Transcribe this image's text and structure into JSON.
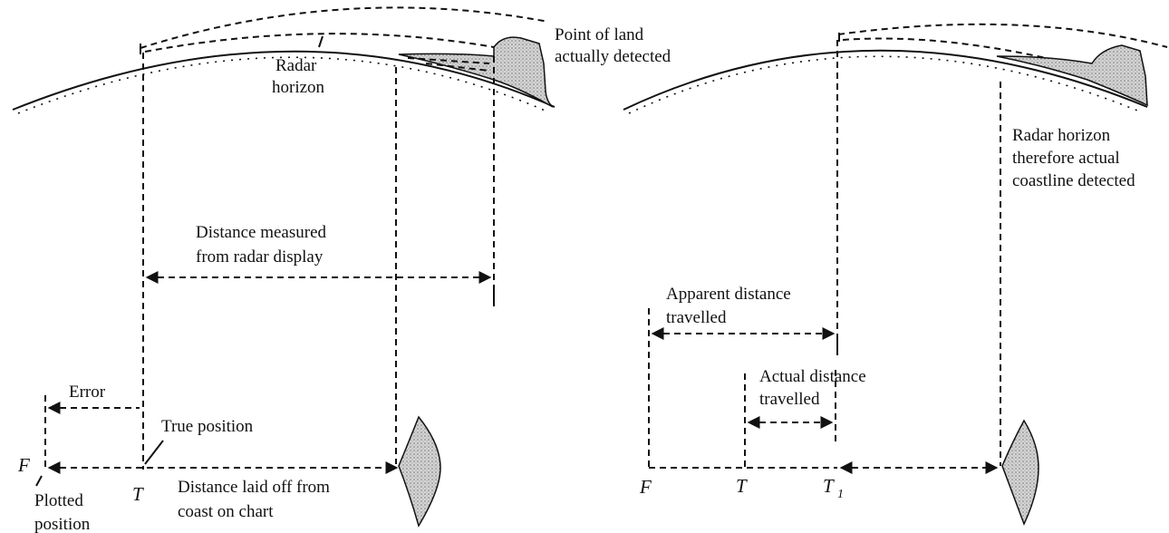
{
  "left_diagram": {
    "point_of_land": [
      "Point of land",
      "actually detected"
    ],
    "radar_horizon": [
      "Radar",
      "horizon"
    ],
    "distance_measured": [
      "Distance measured",
      "from radar display"
    ],
    "error": "Error",
    "true_position": "True position",
    "f_label": "F",
    "t_label": "T",
    "distance_laid_off": [
      "Distance laid off from",
      "coast on chart"
    ],
    "plotted_position": [
      "Plotted",
      "position"
    ]
  },
  "right_diagram": {
    "radar_horizon_note": [
      "Radar horizon",
      "therefore actual",
      "coastline detected"
    ],
    "apparent_distance": [
      "Apparent distance",
      "travelled"
    ],
    "actual_distance": [
      "Actual distance",
      "travelled"
    ],
    "f_label": "F",
    "t_label": "T",
    "t1_label": "T",
    "t1_subscript": "1"
  },
  "colors": {
    "ink": "#111111",
    "land_fill": "#c9c9c9",
    "background": "#ffffff"
  }
}
